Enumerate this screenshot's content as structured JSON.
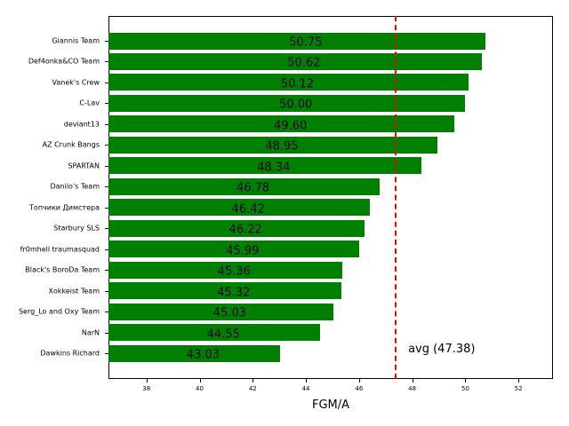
{
  "chart_data": {
    "type": "bar",
    "orientation": "horizontal",
    "title": "",
    "xlabel": "FGM/A",
    "ylabel": "",
    "xlim": [
      36.57,
      53.3
    ],
    "xticks": [
      38,
      40,
      42,
      44,
      46,
      48,
      50,
      52
    ],
    "grid": false,
    "bar_color": "#008000",
    "categories": [
      "Giannis Team",
      "Def4onka&CO Team",
      "Vanek's Crew",
      "C-Lav",
      "deviant13",
      "AZ Crunk Bangs",
      "SPARTAN",
      "Danilo's Team",
      "Топчики Димстера",
      "Starbury SLS",
      "fr0mhell traumasquad",
      "Black's BoroDa Team",
      "Xokkeist Team",
      "Serg_Lo and Oxy Team",
      "NarN",
      "Dawkins Richard"
    ],
    "values": [
      50.75,
      50.62,
      50.12,
      50.0,
      49.6,
      48.95,
      48.34,
      46.78,
      46.42,
      46.22,
      45.99,
      45.36,
      45.32,
      45.03,
      44.55,
      43.03
    ],
    "value_labels": [
      "50.75",
      "50.62",
      "50.12",
      "50.00",
      "49.60",
      "48.95",
      "48.34",
      "46.78",
      "46.42",
      "46.22",
      "45.99",
      "45.36",
      "45.32",
      "45.03",
      "44.55",
      "43.03"
    ],
    "reference_line": {
      "value": 47.38,
      "label": "avg (47.38)",
      "color": "#ff0000",
      "style": "dashed"
    }
  }
}
